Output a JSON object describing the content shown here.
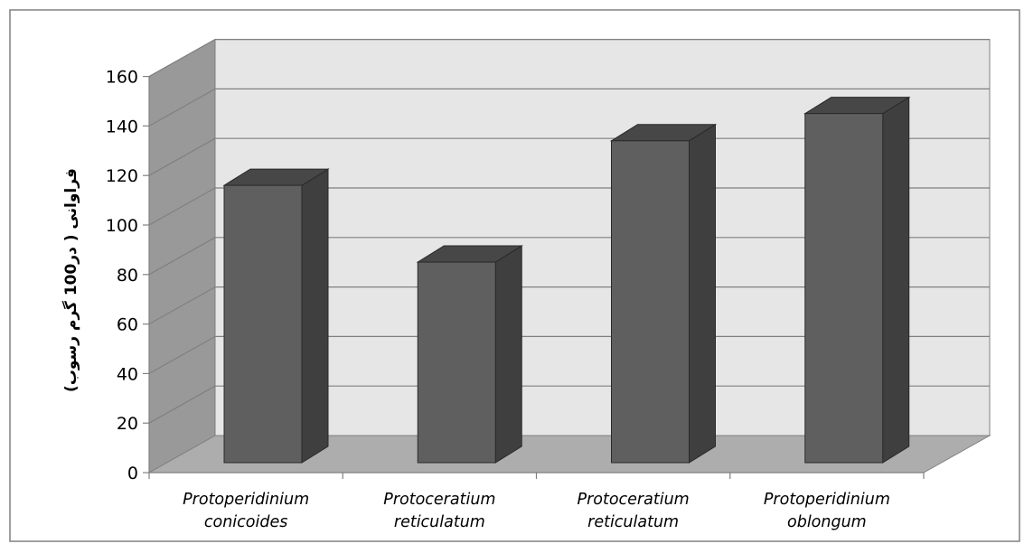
{
  "chart_data": {
    "type": "bar",
    "style": "3d-column",
    "categories": [
      [
        "Protoperidinium",
        "conicoides"
      ],
      [
        "Protoceratium",
        "reticulatum"
      ],
      [
        "Protoceratium",
        "reticulatum"
      ],
      [
        "Protoperidinium",
        "oblongum"
      ]
    ],
    "values": [
      112,
      81,
      130,
      141
    ],
    "ylabel": "فراوانی ( در100 گرم رسوب)",
    "ylim": [
      0,
      160
    ],
    "yticks": [
      0,
      20,
      40,
      60,
      80,
      100,
      120,
      140,
      160
    ],
    "grid": true,
    "legend": "none",
    "colors": {
      "bar_front": "#5f5f5f",
      "bar_side": "#3f3f3f",
      "bar_top": "#474747",
      "bar_outline": "#2a2a2a",
      "back_wall": "#e6e6e6",
      "side_wall": "#999999",
      "floor": "#adadad",
      "gridline": "#808080",
      "frame": "#808080"
    }
  }
}
